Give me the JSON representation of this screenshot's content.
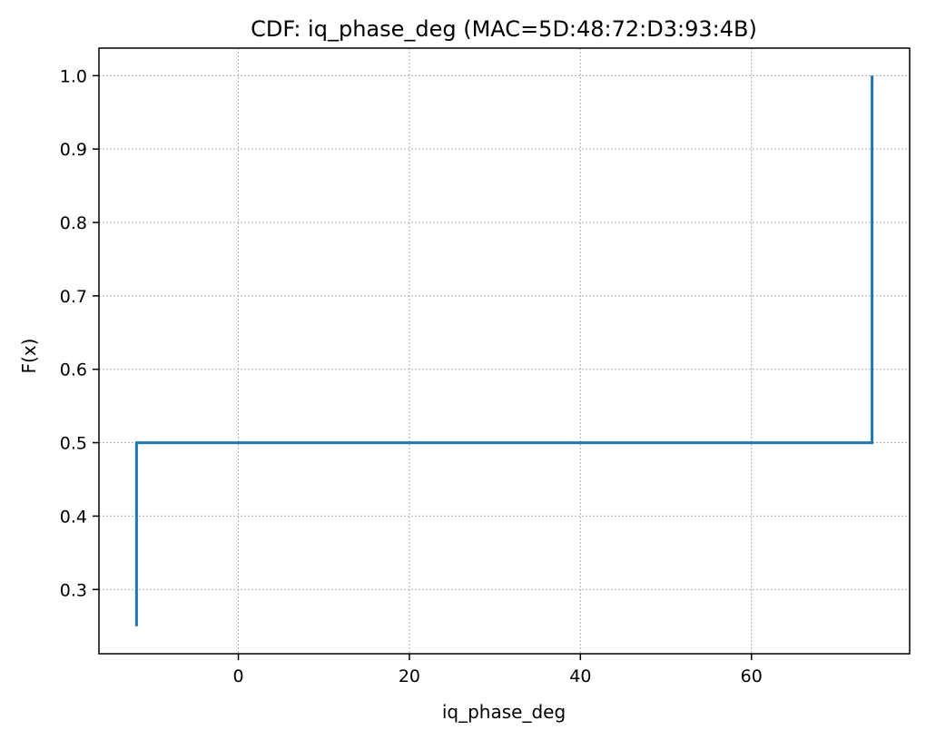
{
  "chart_data": {
    "type": "line",
    "title": "CDF: iq_phase_deg (MAC=5D:48:72:D3:93:4B)",
    "xlabel": "iq_phase_deg",
    "ylabel": "F(x)",
    "xlim": [
      -16.3,
      78.5
    ],
    "ylim": [
      0.2125,
      1.0375
    ],
    "xticks": [
      0,
      20,
      40,
      60
    ],
    "xtick_labels": [
      "0",
      "20",
      "40",
      "60"
    ],
    "yticks": [
      0.3,
      0.4,
      0.5,
      0.6,
      0.7,
      0.8,
      0.9,
      1.0
    ],
    "ytick_labels": [
      "0.3",
      "0.4",
      "0.5",
      "0.6",
      "0.7",
      "0.8",
      "0.9",
      "1.0"
    ],
    "grid": true,
    "series": [
      {
        "color": "#1f77b4",
        "step": "post",
        "x": [
          -11.9,
          -11.9,
          74.1,
          74.1
        ],
        "y": [
          0.25,
          0.5,
          0.5,
          1.0
        ]
      }
    ]
  }
}
